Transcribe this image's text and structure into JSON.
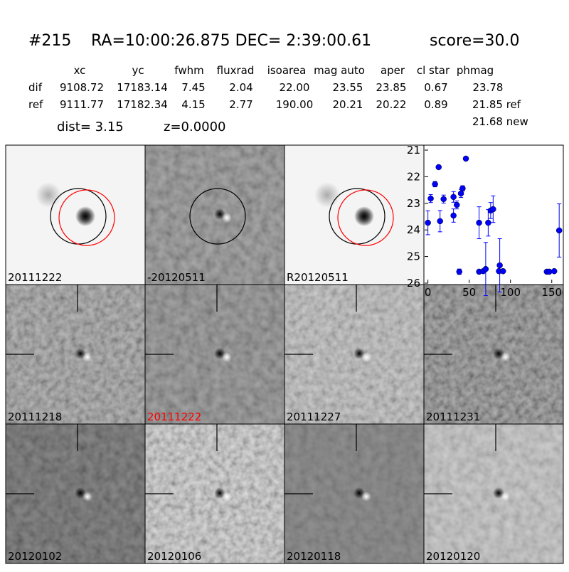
{
  "header": {
    "id": "#215",
    "coords": "RA=10:00:26.875 DEC= 2:39:00.61",
    "score": "score=30.0"
  },
  "table": {
    "columns": [
      "xc",
      "yc",
      "fwhm",
      "fluxrad",
      "isoarea",
      "mag auto",
      "aper",
      "cl star",
      "phmag"
    ],
    "rows": [
      [
        "dif",
        "9108.72",
        "17183.14",
        "7.45",
        "2.04",
        "22.00",
        "23.55",
        "23.85",
        "0.67",
        "23.78"
      ],
      [
        "ref",
        "9111.77",
        "17182.34",
        "4.15",
        "2.77",
        "190.00",
        "20.21",
        "20.22",
        "0.89",
        "21.85 ref"
      ]
    ],
    "extra": "21.68 new"
  },
  "dist": "dist=  3.15",
  "redshift": "z=0.0000",
  "panels": [
    "20111222",
    "-20120511",
    "R20120511",
    "20111218",
    "20111222",
    "20111227",
    "20111231",
    "20120102",
    "20120106",
    "20120118",
    "20120120"
  ],
  "chart_data": {
    "type": "scatter",
    "x": [
      0,
      3.4,
      8.6,
      13,
      14.7,
      19,
      31,
      31,
      35,
      38,
      40,
      42,
      46,
      62,
      62,
      67,
      70,
      73,
      76,
      79,
      86,
      87,
      91,
      144,
      147,
      153,
      159
    ],
    "series": [
      {
        "color": "#0000ff",
        "values": [
          23.73,
          22.82,
          22.28,
          21.64,
          23.67,
          22.84,
          22.76,
          23.46,
          23.06,
          25.57,
          22.63,
          22.44,
          21.32,
          23.73,
          25.57,
          25.55,
          25.47,
          23.73,
          23.27,
          23.22,
          25.55,
          25.33,
          25.55,
          25.57,
          25.57,
          25.55,
          24.02
        ],
        "errors": [
          0.45,
          0.15,
          0.1,
          0.05,
          0.4,
          0.15,
          0.2,
          0.25,
          0.15,
          0.1,
          0.15,
          0.1,
          0.03,
          0.6,
          0.05,
          0.05,
          1.0,
          0.5,
          0.3,
          0.5,
          0.05,
          1.0,
          0.05,
          0.05,
          0.05,
          0.05,
          1.0
        ]
      }
    ],
    "xlim": [
      -4,
      164
    ],
    "ylim": [
      26,
      21
    ],
    "xticks": [
      0,
      50,
      100,
      150
    ],
    "yticks": [
      21,
      22,
      23,
      24,
      25,
      26
    ]
  }
}
